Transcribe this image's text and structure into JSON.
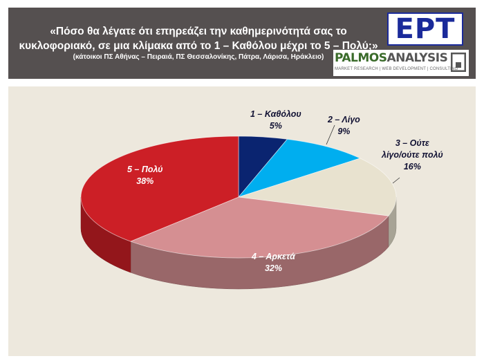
{
  "header": {
    "title_line1": "«Πόσο θα λέγατε ότι επηρεάζει την καθημερινότητά σας το",
    "title_line2": "κυκλοφοριακό, σε μια κλίμακα από το 1 – Καθόλου μέχρι το 5 – Πολύ;»",
    "subtitle": "(κάτοικοι ΠΣ Αθήνας – Πειραιά, ΠΣ Θεσσαλονίκης, Πάτρα, Λάρισα, Ηράκλειο)",
    "logo_ert": "ΕΡΤ",
    "logo_palmos_1": "PALMOS",
    "logo_palmos_2": "ANALYSIS",
    "logo_palmos_tagline": "MARKET RESEARCH | WEB DEVELOPMENT | CONSULTING"
  },
  "colors": {
    "header_bg": "#555050",
    "panel_bg": "#ede8dd",
    "ert_blue": "#1a2a9a"
  },
  "chart_data": {
    "type": "pie",
    "style": "3d",
    "slices": [
      {
        "category": "1 – Καθόλου",
        "value": 5,
        "value_label": "5%",
        "color": "#0a2470"
      },
      {
        "category": "2 – Λίγο",
        "value": 9,
        "value_label": "9%",
        "color": "#00aeef"
      },
      {
        "category": "3 – Ούτε λίγο/ούτε πολύ",
        "category_line1": "3 – Ούτε",
        "category_line2": "λίγο/ούτε πολύ",
        "value": 16,
        "value_label": "16%",
        "color": "#e8e2cf"
      },
      {
        "category": "4 – Αρκετά",
        "value": 32,
        "value_label": "32%",
        "color": "#d58f92"
      },
      {
        "category": "5 – Πολύ",
        "value": 38,
        "value_label": "38%",
        "color": "#cc1f26"
      }
    ],
    "labels": {
      "s1_name": "1 – Καθόλου",
      "s1_val": "5%",
      "s2_name": "2 – Λίγο",
      "s2_val": "9%",
      "s3_name_1": "3 – Ούτε",
      "s3_name_2": "λίγο/ούτε πολύ",
      "s3_val": "16%",
      "s4_name": "4 – Αρκετά",
      "s4_val": "32%",
      "s5_name": "5 – Πολύ",
      "s5_val": "38%"
    }
  }
}
